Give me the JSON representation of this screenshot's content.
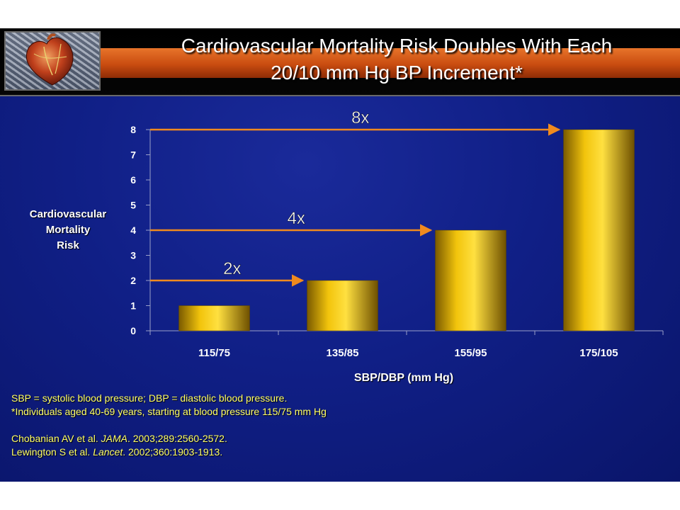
{
  "title": {
    "line1": "Cardiovascular Mortality Risk Doubles With Each",
    "line2": "20/10 mm Hg BP Increment*"
  },
  "logo": {
    "icon": "heart-illustration-icon"
  },
  "chart_data": {
    "type": "bar",
    "categories": [
      "115/75",
      "135/85",
      "155/95",
      "175/105"
    ],
    "values": [
      1,
      2,
      4,
      8
    ],
    "ylabel": [
      "Cardiovascular",
      "Mortality",
      "Risk"
    ],
    "xlabel": "SBP/DBP (mm Hg)",
    "ylim": [
      0,
      8
    ],
    "yticks": [
      "0",
      "1",
      "2",
      "3",
      "4",
      "5",
      "6",
      "7",
      "8"
    ],
    "grid": false,
    "bar_color": "#f2c40c",
    "annotations": [
      {
        "text": "2x",
        "level": 2,
        "to_category": "135/85"
      },
      {
        "text": "4x",
        "level": 4,
        "to_category": "155/95"
      },
      {
        "text": "8x",
        "level": 8,
        "to_category": "175/105"
      }
    ],
    "arrow_color": "#f08a1e"
  },
  "notes": {
    "line1": "SBP = systolic blood pressure; DBP = diastolic blood pressure.",
    "line2": "*Individuals aged 40-69 years, starting at blood pressure 115/75 mm Hg",
    "ref1_prefix": "Chobanian AV et al. ",
    "ref1_journal": "JAMA",
    "ref1_suffix": ". 2003;289:2560-2572.",
    "ref2_prefix": "Lewington S et al. ",
    "ref2_journal": "Lancet",
    "ref2_suffix": ". 2002;360:1903-1913."
  },
  "colors": {
    "background": "#101f86",
    "title_stripe": "#c94c10",
    "notes_text": "#ffff66"
  }
}
